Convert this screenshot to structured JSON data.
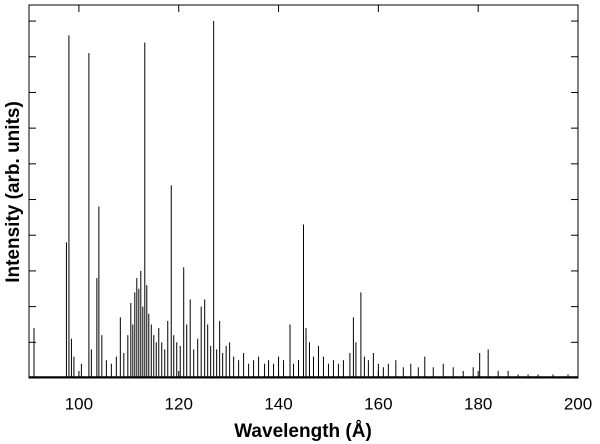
{
  "chart_data": {
    "type": "stem",
    "x_label": "Wavelength (Å)",
    "y_label": "Intensity (arb. units)",
    "xlim": [
      90,
      200
    ],
    "xticks": [
      100,
      120,
      140,
      160,
      180,
      200
    ],
    "ylim": [
      0,
      10.45
    ],
    "yticks": [
      1,
      2,
      3,
      4,
      5,
      6,
      7,
      8,
      9,
      10
    ],
    "color": "#000000",
    "x": [
      91.0,
      97.5,
      98.0,
      98.5,
      99.0,
      100.5,
      102.0,
      102.5,
      103.6,
      104.0,
      104.6,
      105.5,
      106.5,
      107.5,
      108.3,
      109.0,
      109.8,
      110.4,
      110.8,
      111.2,
      111.6,
      112.0,
      112.4,
      112.8,
      113.2,
      113.6,
      114.0,
      114.5,
      115.0,
      115.5,
      116.0,
      116.6,
      117.2,
      117.8,
      118.5,
      119.0,
      119.6,
      120.3,
      121.0,
      121.6,
      122.3,
      123.0,
      123.8,
      124.5,
      125.2,
      125.8,
      126.4,
      127.0,
      127.6,
      128.2,
      128.8,
      129.5,
      130.2,
      131.0,
      132.0,
      133.0,
      134.0,
      135.0,
      136.0,
      137.2,
      138.0,
      139.0,
      140.0,
      141.0,
      142.3,
      143.0,
      144.0,
      145.0,
      145.5,
      146.2,
      147.0,
      148.0,
      149.0,
      150.0,
      151.0,
      152.0,
      153.0,
      154.3,
      155.0,
      155.5,
      156.5,
      157.2,
      158.0,
      159.0,
      160.0,
      161.0,
      162.0,
      163.5,
      165.0,
      166.5,
      168.0,
      169.3,
      171.0,
      173.0,
      175.0,
      177.0,
      179.0,
      180.3,
      182.0,
      184.0,
      186.0,
      188.0,
      190.0,
      192.0,
      195.0,
      198.0
    ],
    "values": [
      1.4,
      3.8,
      9.6,
      1.1,
      0.6,
      0.4,
      9.1,
      0.8,
      2.8,
      4.8,
      1.2,
      0.5,
      0.4,
      0.6,
      1.7,
      0.7,
      1.2,
      2.1,
      1.5,
      2.4,
      2.8,
      2.5,
      3.0,
      2.0,
      9.4,
      2.6,
      1.8,
      1.5,
      1.2,
      1.0,
      1.4,
      1.0,
      0.8,
      1.6,
      5.4,
      1.2,
      1.0,
      0.9,
      3.1,
      1.5,
      2.2,
      0.8,
      1.1,
      2.0,
      2.2,
      1.5,
      0.9,
      10.0,
      0.8,
      1.6,
      0.7,
      0.9,
      1.0,
      0.6,
      0.5,
      0.7,
      0.4,
      0.5,
      0.6,
      0.4,
      0.5,
      0.4,
      0.6,
      0.5,
      1.5,
      0.4,
      0.5,
      4.3,
      1.4,
      1.0,
      0.6,
      0.9,
      0.6,
      0.4,
      0.5,
      0.4,
      0.5,
      0.7,
      1.7,
      1.0,
      2.4,
      0.6,
      0.5,
      0.7,
      0.4,
      0.3,
      0.4,
      0.5,
      0.3,
      0.4,
      0.3,
      0.6,
      0.3,
      0.4,
      0.3,
      0.2,
      0.3,
      0.7,
      0.8,
      0.2,
      0.2,
      0.1,
      0.1,
      0.1,
      0.1,
      0.1
    ]
  }
}
